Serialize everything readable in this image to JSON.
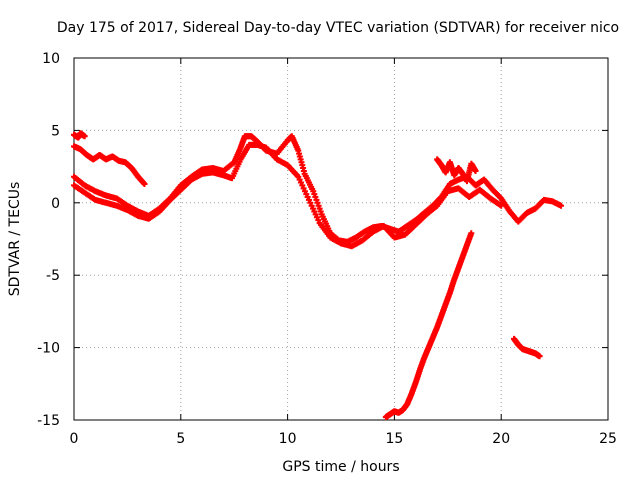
{
  "chart_data": {
    "type": "scatter",
    "title": "Day 175 of 2017, Sidereal Day-to-day VTEC variation (SDTVAR) for receiver nico",
    "xlabel": "GPS time / hours",
    "ylabel": "SDTVAR / TECUs",
    "xlim": [
      0,
      25
    ],
    "ylim": [
      -15,
      10
    ],
    "xticks": [
      0,
      5,
      10,
      15,
      20,
      25
    ],
    "yticks": [
      -15,
      -10,
      -5,
      0,
      5,
      10
    ],
    "grid": true,
    "marker": "+",
    "color": "#ff0000",
    "series": [
      {
        "name": "track-a-early",
        "x": [
          0.0,
          0.2,
          0.3,
          0.5
        ],
        "y": [
          4.7,
          4.5,
          4.8,
          4.6
        ]
      },
      {
        "name": "track-b-early",
        "x": [
          0.0,
          0.3,
          0.6,
          0.9,
          1.2,
          1.5,
          1.8,
          2.1,
          2.4,
          2.7,
          3.0,
          3.3
        ],
        "y": [
          3.9,
          3.7,
          3.3,
          3.0,
          3.3,
          3.0,
          3.2,
          2.9,
          2.8,
          2.4,
          1.8,
          1.3
        ]
      },
      {
        "name": "track-c-main",
        "x": [
          0.0,
          0.5,
          1.0,
          1.5,
          2.0,
          2.5,
          3.0,
          3.5,
          4.0,
          4.5,
          5.0,
          5.5,
          6.0,
          6.5,
          7.0,
          7.5,
          7.8,
          8.0,
          8.3,
          8.6,
          9.0,
          9.5,
          10.0,
          10.2,
          10.5,
          10.8,
          11.2,
          11.6,
          12.0,
          12.4,
          12.8,
          13.2,
          13.6,
          14.0,
          14.4,
          14.8,
          15.2,
          15.6,
          16.0,
          16.4,
          16.8,
          17.2,
          17.6,
          18.0,
          18.4,
          18.8,
          19.2,
          19.6,
          20.0,
          20.4,
          20.8,
          21.2,
          21.6,
          22.0,
          22.4,
          22.8
        ],
        "y": [
          1.8,
          1.2,
          0.8,
          0.5,
          0.3,
          -0.2,
          -0.6,
          -0.9,
          -0.4,
          0.3,
          1.2,
          1.8,
          2.3,
          2.4,
          2.2,
          2.8,
          3.8,
          4.6,
          4.6,
          4.2,
          3.6,
          3.4,
          4.3,
          4.6,
          3.6,
          2.0,
          0.8,
          -0.8,
          -2.1,
          -2.6,
          -2.7,
          -2.4,
          -2.0,
          -1.7,
          -1.6,
          -1.8,
          -2.0,
          -1.6,
          -1.2,
          -0.7,
          -0.2,
          0.4,
          1.3,
          1.6,
          1.8,
          1.2,
          1.6,
          0.9,
          0.3,
          -0.6,
          -1.3,
          -0.7,
          -0.4,
          0.2,
          0.1,
          -0.2
        ]
      },
      {
        "name": "track-d-parallel",
        "x": [
          0.0,
          0.5,
          1.0,
          1.5,
          2.0,
          2.5,
          3.0,
          3.5,
          4.0,
          4.5,
          5.0,
          5.5,
          6.0,
          6.5,
          7.0,
          7.4,
          7.8,
          8.2,
          8.6,
          9.0,
          9.5,
          10.0,
          10.5,
          11.0,
          11.5,
          12.0,
          12.5,
          13.0,
          13.5,
          14.0,
          14.5,
          15.0,
          15.5,
          16.0,
          16.5,
          17.0,
          17.5,
          18.0,
          18.5,
          19.0,
          19.5,
          20.0
        ],
        "y": [
          1.2,
          0.7,
          0.2,
          0.0,
          -0.2,
          -0.5,
          -0.9,
          -1.1,
          -0.6,
          0.2,
          0.9,
          1.6,
          2.0,
          2.1,
          1.9,
          1.7,
          3.0,
          4.0,
          4.0,
          3.8,
          3.0,
          2.6,
          1.8,
          0.2,
          -1.4,
          -2.4,
          -2.8,
          -3.0,
          -2.6,
          -2.0,
          -1.6,
          -2.4,
          -2.2,
          -1.5,
          -0.8,
          -0.2,
          0.8,
          1.0,
          0.4,
          0.9,
          0.3,
          -0.2
        ]
      },
      {
        "name": "track-e-spike",
        "x": [
          17.0,
          17.2,
          17.4,
          17.6,
          17.8,
          18.0,
          18.2,
          18.4,
          18.6,
          18.8
        ],
        "y": [
          3.0,
          2.6,
          2.1,
          2.8,
          1.9,
          2.4,
          2.0,
          1.5,
          2.7,
          2.2
        ]
      },
      {
        "name": "track-f-descent",
        "x": [
          14.6,
          14.8,
          15.0,
          15.2,
          15.4,
          15.6,
          15.8,
          16.0,
          16.2,
          16.4,
          16.6,
          16.8,
          17.0,
          17.2,
          17.4,
          17.6,
          17.8,
          18.0,
          18.2,
          18.4,
          18.6
        ],
        "y": [
          -14.8,
          -14.6,
          -14.4,
          -14.5,
          -14.3,
          -13.9,
          -13.2,
          -12.4,
          -11.5,
          -10.7,
          -10.0,
          -9.3,
          -8.6,
          -7.8,
          -7.0,
          -6.2,
          -5.3,
          -4.5,
          -3.7,
          -2.9,
          -2.1
        ]
      },
      {
        "name": "track-g-late",
        "x": [
          20.6,
          20.8,
          21.0,
          21.2,
          21.4,
          21.6,
          21.8
        ],
        "y": [
          -9.4,
          -9.8,
          -10.1,
          -10.2,
          -10.3,
          -10.4,
          -10.6
        ]
      }
    ]
  }
}
